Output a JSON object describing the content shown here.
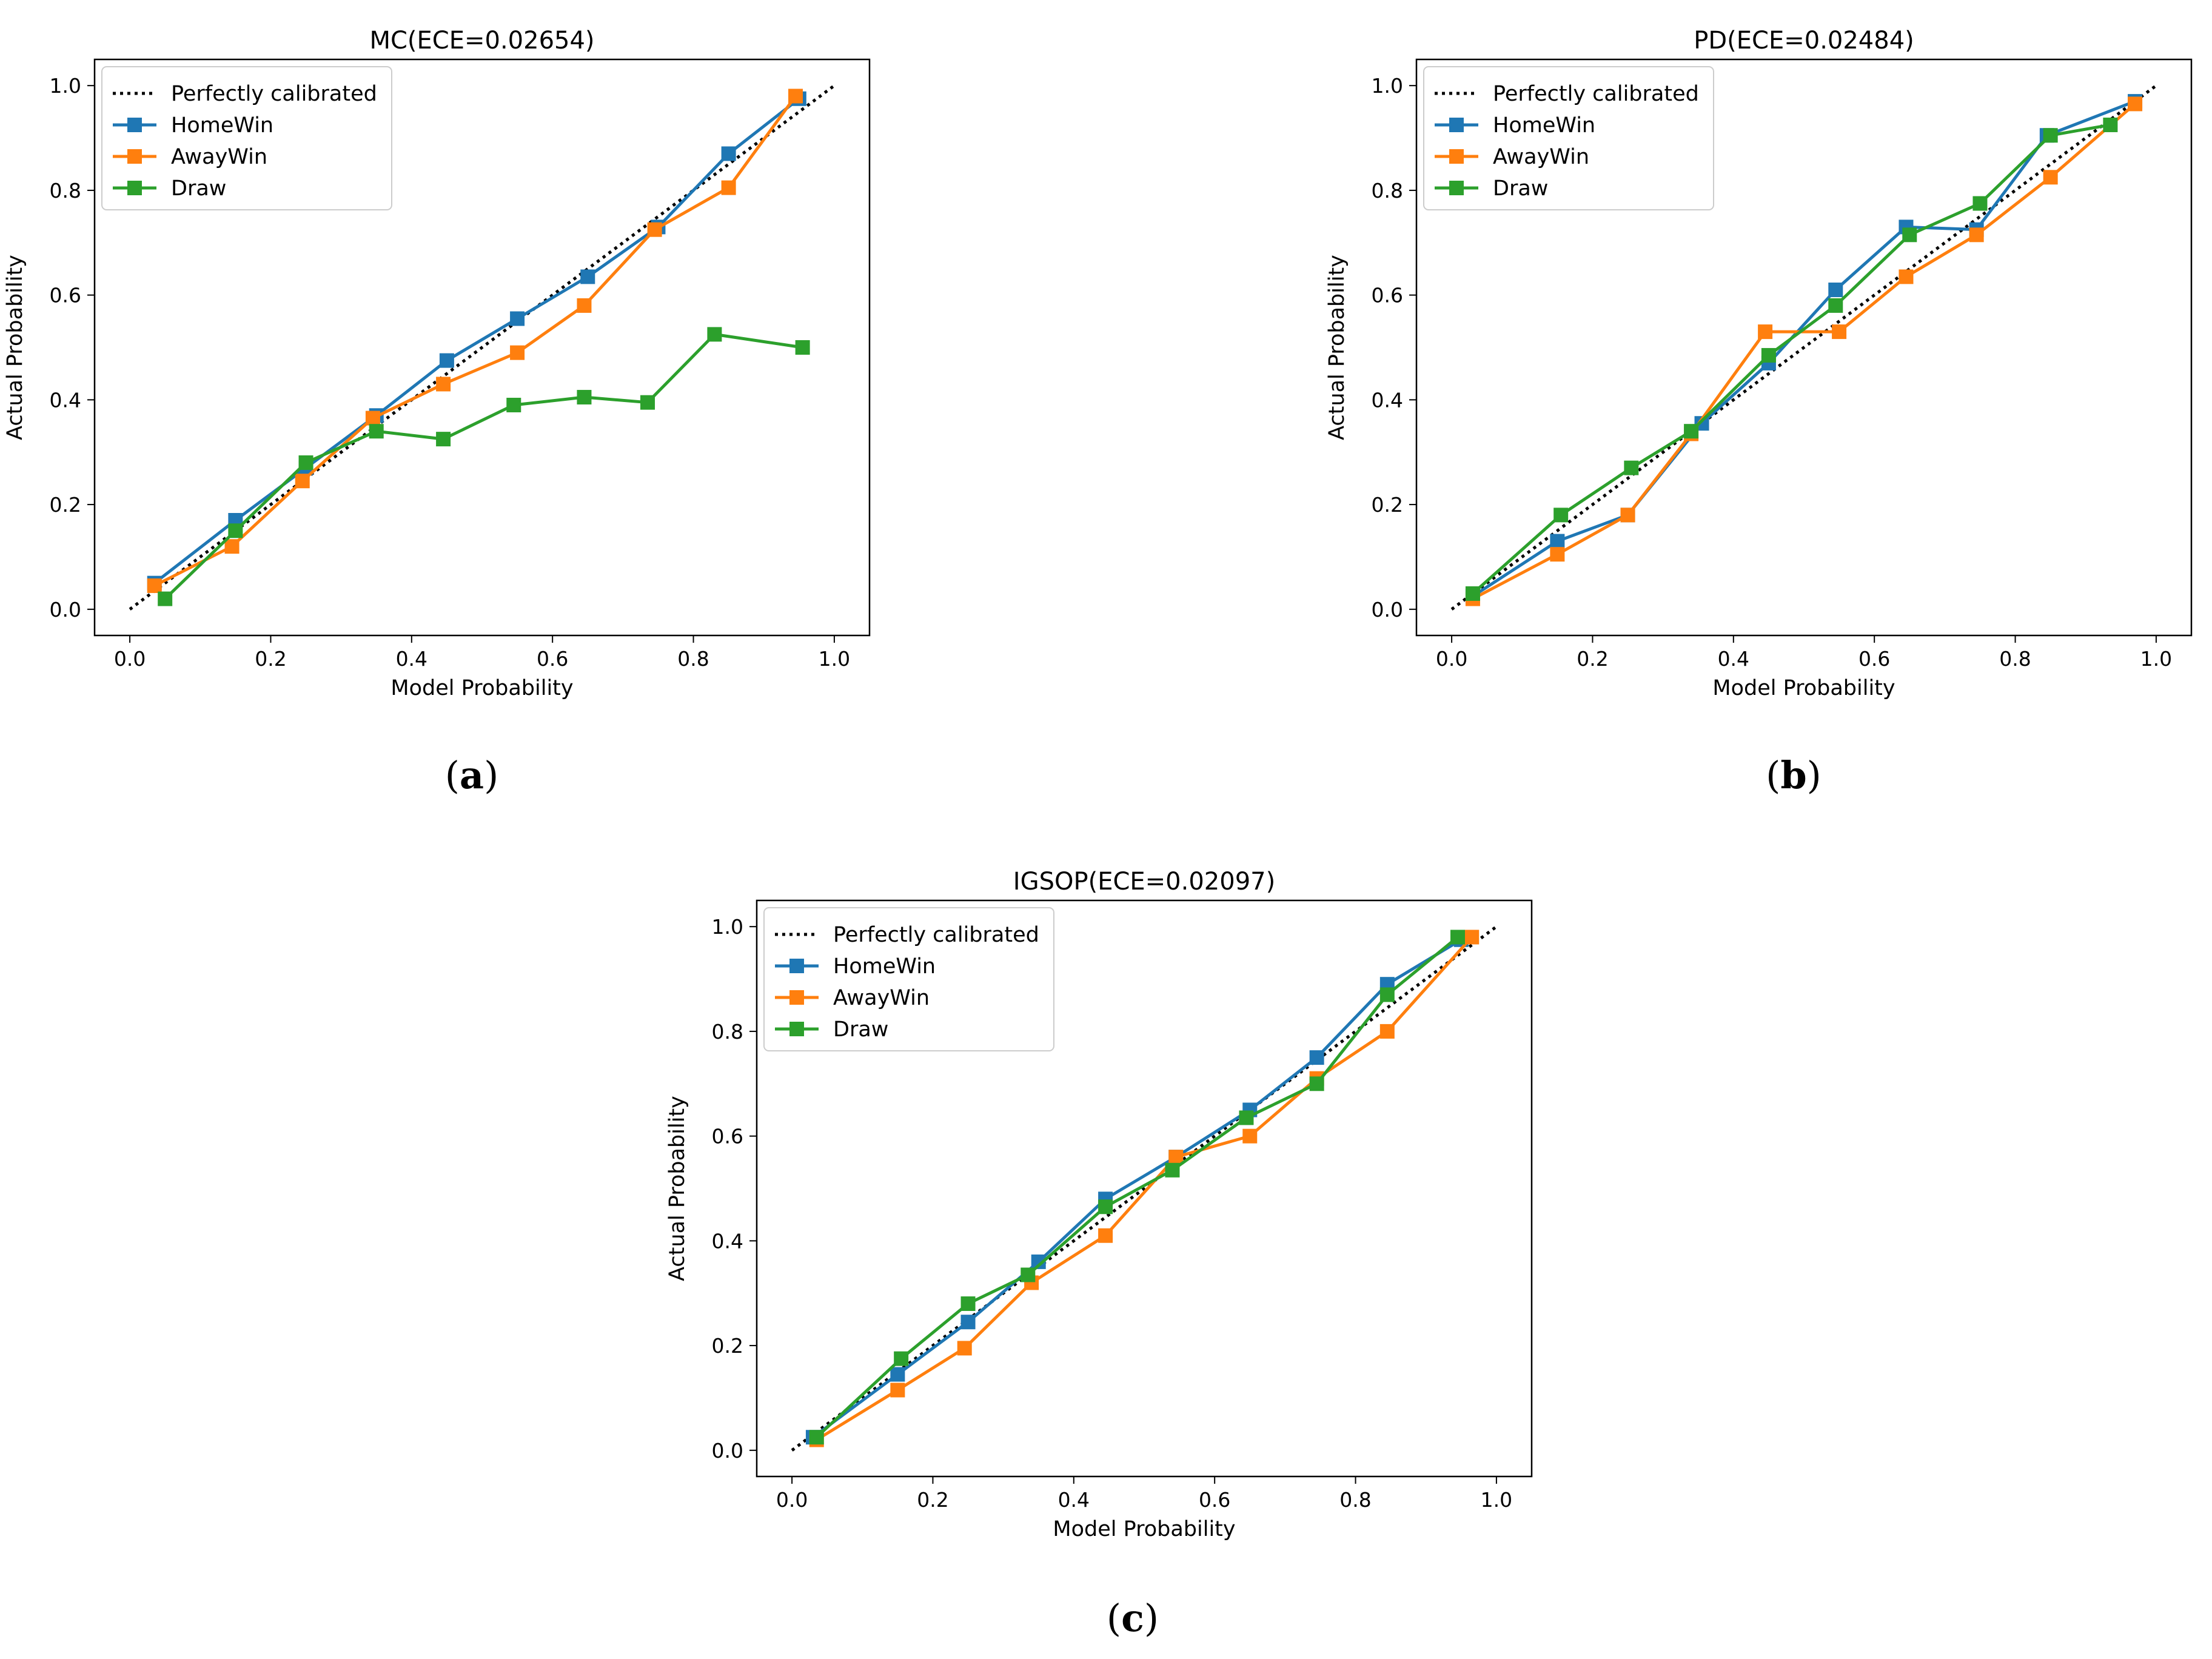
{
  "colors": {
    "perfect": "#000000",
    "HomeWin": "#1f77b4",
    "AwayWin": "#ff7f0e",
    "Draw": "#2ca02c"
  },
  "legend_labels": [
    "Perfectly calibrated",
    "HomeWin",
    "AwayWin",
    "Draw"
  ],
  "chart_data": [
    {
      "type": "line",
      "panel": "(a)",
      "panel_letter": "a",
      "title": "MC(ECE=0.02654)",
      "xlabel": "Model Probability",
      "ylabel": "Actual Probability",
      "xlim": [
        -0.05,
        1.05
      ],
      "ylim": [
        -0.05,
        1.05
      ],
      "xticks": [
        "0.0",
        "0.2",
        "0.4",
        "0.6",
        "0.8",
        "1.0"
      ],
      "yticks": [
        "0.0",
        "0.2",
        "0.4",
        "0.6",
        "0.8",
        "1.0"
      ],
      "legend": "top-left",
      "reference": {
        "name": "Perfectly calibrated",
        "x": [
          0,
          1
        ],
        "y": [
          0,
          1
        ]
      },
      "series": [
        {
          "name": "HomeWin",
          "x": [
            0.035,
            0.15,
            0.25,
            0.35,
            0.45,
            0.55,
            0.65,
            0.75,
            0.85,
            0.95
          ],
          "y": [
            0.05,
            0.17,
            0.27,
            0.37,
            0.475,
            0.555,
            0.635,
            0.73,
            0.87,
            0.975
          ]
        },
        {
          "name": "AwayWin",
          "x": [
            0.035,
            0.145,
            0.245,
            0.345,
            0.445,
            0.55,
            0.645,
            0.745,
            0.85,
            0.945
          ],
          "y": [
            0.045,
            0.12,
            0.245,
            0.365,
            0.43,
            0.49,
            0.58,
            0.725,
            0.805,
            0.98
          ]
        },
        {
          "name": "Draw",
          "x": [
            0.05,
            0.15,
            0.25,
            0.35,
            0.445,
            0.545,
            0.645,
            0.735,
            0.83,
            0.955
          ],
          "y": [
            0.02,
            0.15,
            0.28,
            0.34,
            0.325,
            0.39,
            0.405,
            0.395,
            0.525,
            0.5
          ]
        }
      ]
    },
    {
      "type": "line",
      "panel": "(b)",
      "panel_letter": "b",
      "title": "PD(ECE=0.02484)",
      "xlabel": "Model Probability",
      "ylabel": "Actual Probability",
      "xlim": [
        -0.05,
        1.05
      ],
      "ylim": [
        -0.05,
        1.05
      ],
      "xticks": [
        "0.0",
        "0.2",
        "0.4",
        "0.6",
        "0.8",
        "1.0"
      ],
      "yticks": [
        "0.0",
        "0.2",
        "0.4",
        "0.6",
        "0.8",
        "1.0"
      ],
      "legend": "top-left",
      "reference": {
        "name": "Perfectly calibrated",
        "x": [
          0,
          1
        ],
        "y": [
          0,
          1
        ]
      },
      "series": [
        {
          "name": "HomeWin",
          "x": [
            0.03,
            0.15,
            0.25,
            0.355,
            0.45,
            0.545,
            0.645,
            0.745,
            0.845,
            0.97
          ],
          "y": [
            0.025,
            0.13,
            0.18,
            0.355,
            0.47,
            0.61,
            0.73,
            0.725,
            0.905,
            0.97
          ]
        },
        {
          "name": "AwayWin",
          "x": [
            0.03,
            0.15,
            0.25,
            0.34,
            0.445,
            0.55,
            0.645,
            0.745,
            0.85,
            0.97
          ],
          "y": [
            0.02,
            0.105,
            0.18,
            0.335,
            0.53,
            0.53,
            0.635,
            0.715,
            0.825,
            0.965
          ]
        },
        {
          "name": "Draw",
          "x": [
            0.03,
            0.155,
            0.255,
            0.34,
            0.45,
            0.545,
            0.65,
            0.75,
            0.85,
            0.935
          ],
          "y": [
            0.03,
            0.18,
            0.27,
            0.34,
            0.485,
            0.58,
            0.715,
            0.775,
            0.905,
            0.925
          ]
        }
      ]
    },
    {
      "type": "line",
      "panel": "(c)",
      "panel_letter": "c",
      "title": "IGSOP(ECE=0.02097)",
      "xlabel": "Model Probability",
      "ylabel": "Actual Probability",
      "xlim": [
        -0.05,
        1.05
      ],
      "ylim": [
        -0.05,
        1.05
      ],
      "xticks": [
        "0.0",
        "0.2",
        "0.4",
        "0.6",
        "0.8",
        "1.0"
      ],
      "yticks": [
        "0.0",
        "0.2",
        "0.4",
        "0.6",
        "0.8",
        "1.0"
      ],
      "legend": "top-left",
      "reference": {
        "name": "Perfectly calibrated",
        "x": [
          0,
          1
        ],
        "y": [
          0,
          1
        ]
      },
      "series": [
        {
          "name": "HomeWin",
          "x": [
            0.03,
            0.15,
            0.25,
            0.35,
            0.445,
            0.545,
            0.65,
            0.745,
            0.845,
            0.95
          ],
          "y": [
            0.025,
            0.145,
            0.245,
            0.36,
            0.48,
            0.56,
            0.65,
            0.75,
            0.89,
            0.975
          ]
        },
        {
          "name": "AwayWin",
          "x": [
            0.035,
            0.15,
            0.245,
            0.34,
            0.445,
            0.545,
            0.65,
            0.745,
            0.845,
            0.965
          ],
          "y": [
            0.02,
            0.115,
            0.195,
            0.32,
            0.41,
            0.56,
            0.6,
            0.71,
            0.8,
            0.98
          ]
        },
        {
          "name": "Draw",
          "x": [
            0.035,
            0.155,
            0.25,
            0.335,
            0.445,
            0.54,
            0.645,
            0.745,
            0.845,
            0.945
          ],
          "y": [
            0.025,
            0.175,
            0.28,
            0.335,
            0.465,
            0.535,
            0.635,
            0.7,
            0.87,
            0.98
          ]
        }
      ]
    }
  ]
}
